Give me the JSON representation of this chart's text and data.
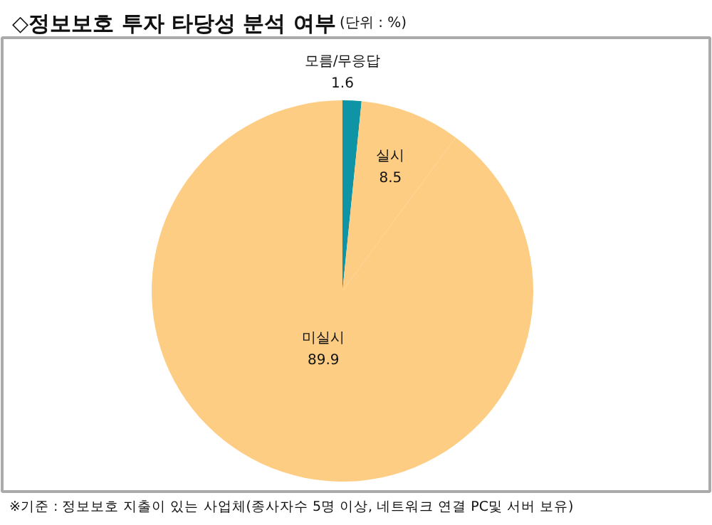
{
  "chart_data": {
    "type": "pie",
    "title": "◇정보보호 투자 타당성 분석 여부",
    "subtitle": "(단위 : %)",
    "categories": [
      "모름/무응답",
      "실시",
      "미실시"
    ],
    "values": [
      1.6,
      8.5,
      89.9
    ],
    "colors": [
      "#0e94a4",
      "#fecd84",
      "#fecd84"
    ],
    "data_labels": true,
    "legend": false,
    "annotations": [
      "※기준 : 정보보호 지출이 있는 사업체(종사자수 5명 이상, 네트워크 연결 PC및 서버 보유)"
    ]
  }
}
